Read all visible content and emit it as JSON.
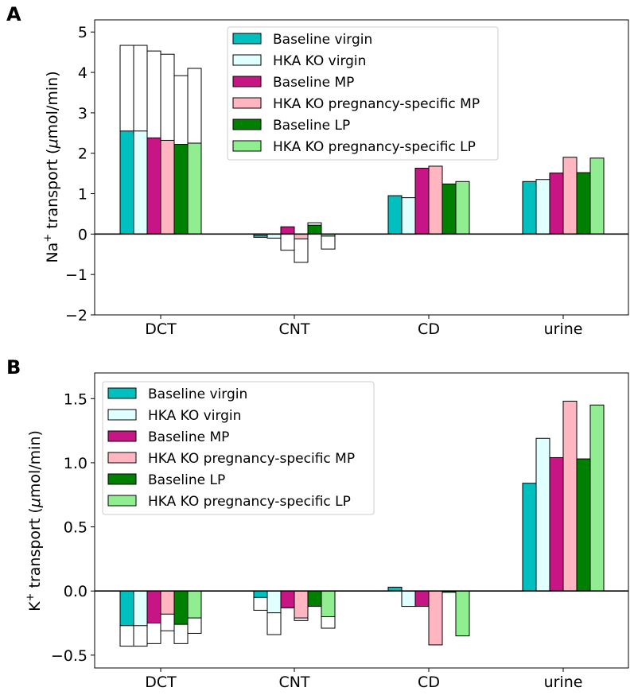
{
  "colors": {
    "Baseline virgin": "#00bfbf",
    "HKA KO virgin": "#e0ffff",
    "Baseline MP": "#c71585",
    "HKA KO pregnancy-specific MP": "#ffb6c1",
    "Baseline LP": "#008000",
    "HKA KO pregnancy-specific LP": "#90ee90"
  },
  "chart_data": [
    {
      "panel": "A",
      "type": "bar",
      "stacked_outline": true,
      "ylabel_main": "Na",
      "ylabel_sup": "+",
      "ylabel_rest": " transport (",
      "ylabel_mu": "μ",
      "ylabel_end": "mol/min)",
      "ylim": [
        -2,
        5.3
      ],
      "yticks": [
        -2,
        -1,
        0,
        1,
        2,
        3,
        4,
        5
      ],
      "ytick_labels": [
        "−2",
        "−1",
        "0",
        "1",
        "2",
        "3",
        "4",
        "5"
      ],
      "categories": [
        "DCT",
        "CNT",
        "CD",
        "urine"
      ],
      "legend_position": "upper-center",
      "series": [
        {
          "name": "Baseline virgin",
          "values": [
            2.55,
            -0.05,
            0.95,
            1.3
          ],
          "outline_totals": [
            4.67,
            -0.08,
            null,
            null
          ]
        },
        {
          "name": "HKA KO virgin",
          "values": [
            2.55,
            -0.1,
            0.9,
            1.35
          ],
          "outline_totals": [
            4.67,
            -0.1,
            null,
            null
          ]
        },
        {
          "name": "Baseline MP",
          "values": [
            2.38,
            0.18,
            1.63,
            1.51
          ],
          "outline_totals": [
            4.53,
            -0.4,
            null,
            null
          ]
        },
        {
          "name": "HKA KO pregnancy-specific MP",
          "values": [
            2.32,
            -0.12,
            1.68,
            1.9
          ],
          "outline_totals": [
            4.45,
            -0.7,
            null,
            null
          ]
        },
        {
          "name": "Baseline LP",
          "values": [
            2.22,
            0.22,
            1.24,
            1.52
          ],
          "outline_totals": [
            3.92,
            0.28,
            null,
            null
          ]
        },
        {
          "name": "HKA KO pregnancy-specific LP",
          "values": [
            2.25,
            -0.05,
            1.3,
            1.88
          ],
          "outline_totals": [
            4.1,
            -0.37,
            null,
            null
          ]
        }
      ]
    },
    {
      "panel": "B",
      "type": "bar",
      "stacked_outline": true,
      "ylabel_main": "K",
      "ylabel_sup": "+",
      "ylabel_rest": " transport (",
      "ylabel_mu": "μ",
      "ylabel_end": "mol/min)",
      "ylim": [
        -0.6,
        1.7
      ],
      "yticks": [
        -0.5,
        0.0,
        0.5,
        1.0,
        1.5
      ],
      "ytick_labels": [
        "−0.5",
        "0.0",
        "0.5",
        "1.0",
        "1.5"
      ],
      "categories": [
        "DCT",
        "CNT",
        "CD",
        "urine"
      ],
      "legend_position": "upper-left",
      "series": [
        {
          "name": "Baseline virgin",
          "values": [
            -0.27,
            -0.05,
            0.03,
            0.84
          ],
          "outline_totals": [
            -0.43,
            -0.15,
            null,
            null
          ]
        },
        {
          "name": "HKA KO virgin",
          "values": [
            -0.27,
            -0.17,
            -0.12,
            1.19
          ],
          "outline_totals": [
            -0.43,
            -0.34,
            null,
            null
          ]
        },
        {
          "name": "Baseline MP",
          "values": [
            -0.25,
            -0.13,
            -0.12,
            1.04
          ],
          "outline_totals": [
            -0.41,
            -0.13,
            null,
            null
          ]
        },
        {
          "name": "HKA KO pregnancy-specific MP",
          "values": [
            -0.18,
            -0.21,
            -0.42,
            1.48
          ],
          "outline_totals": [
            -0.31,
            -0.23,
            null,
            null
          ]
        },
        {
          "name": "Baseline LP",
          "values": [
            -0.26,
            -0.12,
            -0.01,
            1.03
          ],
          "outline_totals": [
            -0.41,
            -0.11,
            null,
            null
          ]
        },
        {
          "name": "HKA KO pregnancy-specific LP",
          "values": [
            -0.21,
            -0.2,
            -0.35,
            1.45
          ],
          "outline_totals": [
            -0.33,
            -0.29,
            null,
            null
          ]
        }
      ]
    }
  ]
}
